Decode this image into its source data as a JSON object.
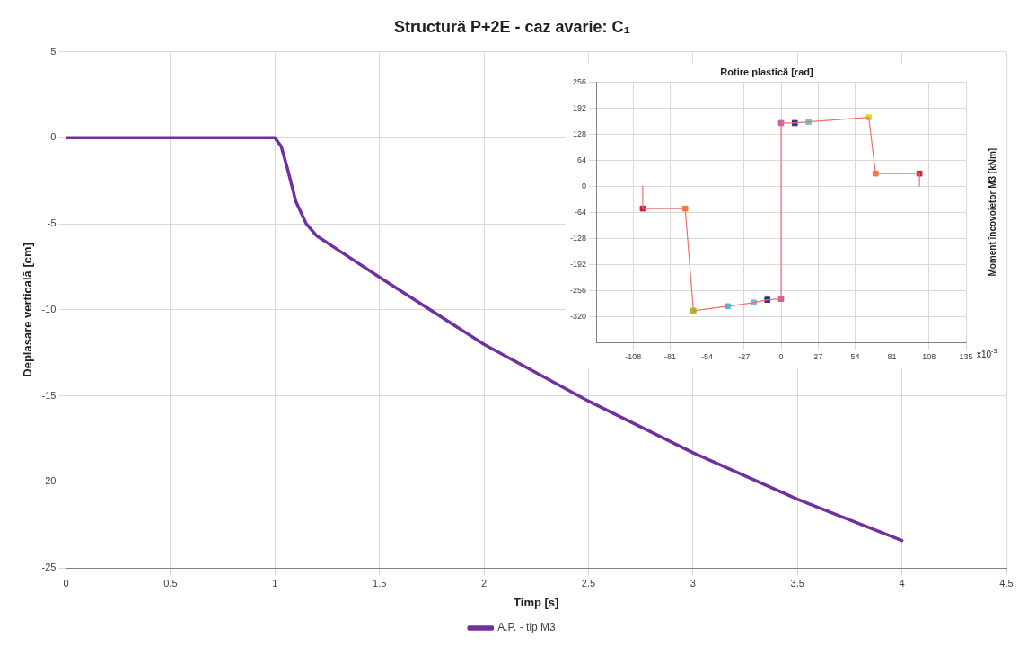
{
  "chart_data": [
    {
      "type": "line",
      "title": "Structură P+2E - caz avarie: C₁",
      "xlabel": "Timp [s]",
      "ylabel": "Deplasare verticală [cm]",
      "xlim": [
        0,
        4.5
      ],
      "xticks": [
        0,
        0.5,
        1,
        1.5,
        2,
        2.5,
        3,
        3.5,
        4,
        4.5
      ],
      "ylim": [
        -25,
        5
      ],
      "yticks": [
        5,
        0,
        -5,
        -10,
        -15,
        -20,
        -25
      ],
      "grid": true,
      "legend": "bottom",
      "marker": "none",
      "series": [
        {
          "name": "A.P. - tip M3",
          "color": "#7030a0",
          "x": [
            0,
            0.5,
            1,
            1.03,
            1.06,
            1.1,
            1.15,
            1.2,
            1.3,
            1.5,
            2,
            2.5,
            3,
            3.5,
            4
          ],
          "values": [
            0,
            0,
            0,
            -0.5,
            -1.8,
            -3.7,
            -5,
            -5.7,
            -6.5,
            -8.1,
            -12,
            -15.3,
            -18.3,
            -21,
            -23.4
          ]
        }
      ]
    },
    {
      "type": "line",
      "title": "Rotire plastică [rad]",
      "ylabel": "Moment încovoietor M3 [kNm]",
      "annotations": [
        "x10$^{-3}$"
      ],
      "xlim": [
        -135,
        135
      ],
      "xticks": [
        -108,
        -81,
        -54,
        -27,
        0,
        27,
        54,
        81,
        108,
        135
      ],
      "ylim": [
        -384,
        256
      ],
      "yticks": [
        256,
        192,
        128,
        64,
        0,
        -64,
        -128,
        -192,
        -256,
        -320
      ],
      "grid": true,
      "series": [
        {
          "type": "line",
          "color": "#f07070",
          "marker": "none",
          "x": [
            -101,
            -101,
            -70,
            -64,
            -39,
            -20,
            -10,
            0,
            0,
            10,
            20,
            64,
            69,
            101,
            101
          ],
          "values": [
            0,
            -55,
            -55,
            -306,
            -295,
            -286,
            -279,
            -277,
            155,
            155,
            158,
            169,
            31,
            31,
            0
          ]
        },
        {
          "type": "scatter",
          "marker": "square",
          "x": [
            -101,
            -70,
            -64,
            -39,
            -20,
            -10,
            0,
            0,
            10,
            20,
            64,
            69,
            101
          ],
          "values": [
            -55,
            -55,
            -306,
            -295,
            -286,
            -279,
            -277,
            155,
            155,
            158,
            169,
            31,
            31
          ],
          "colors": [
            "#d02040",
            "#f08030",
            "#a0c020",
            "#40c0e0",
            "#80b0e0",
            "#303080",
            "#c060a0",
            "#c060a0",
            "#303080",
            "#80c0c0",
            "#e0e020",
            "#f08030",
            "#d02040"
          ]
        }
      ]
    }
  ]
}
